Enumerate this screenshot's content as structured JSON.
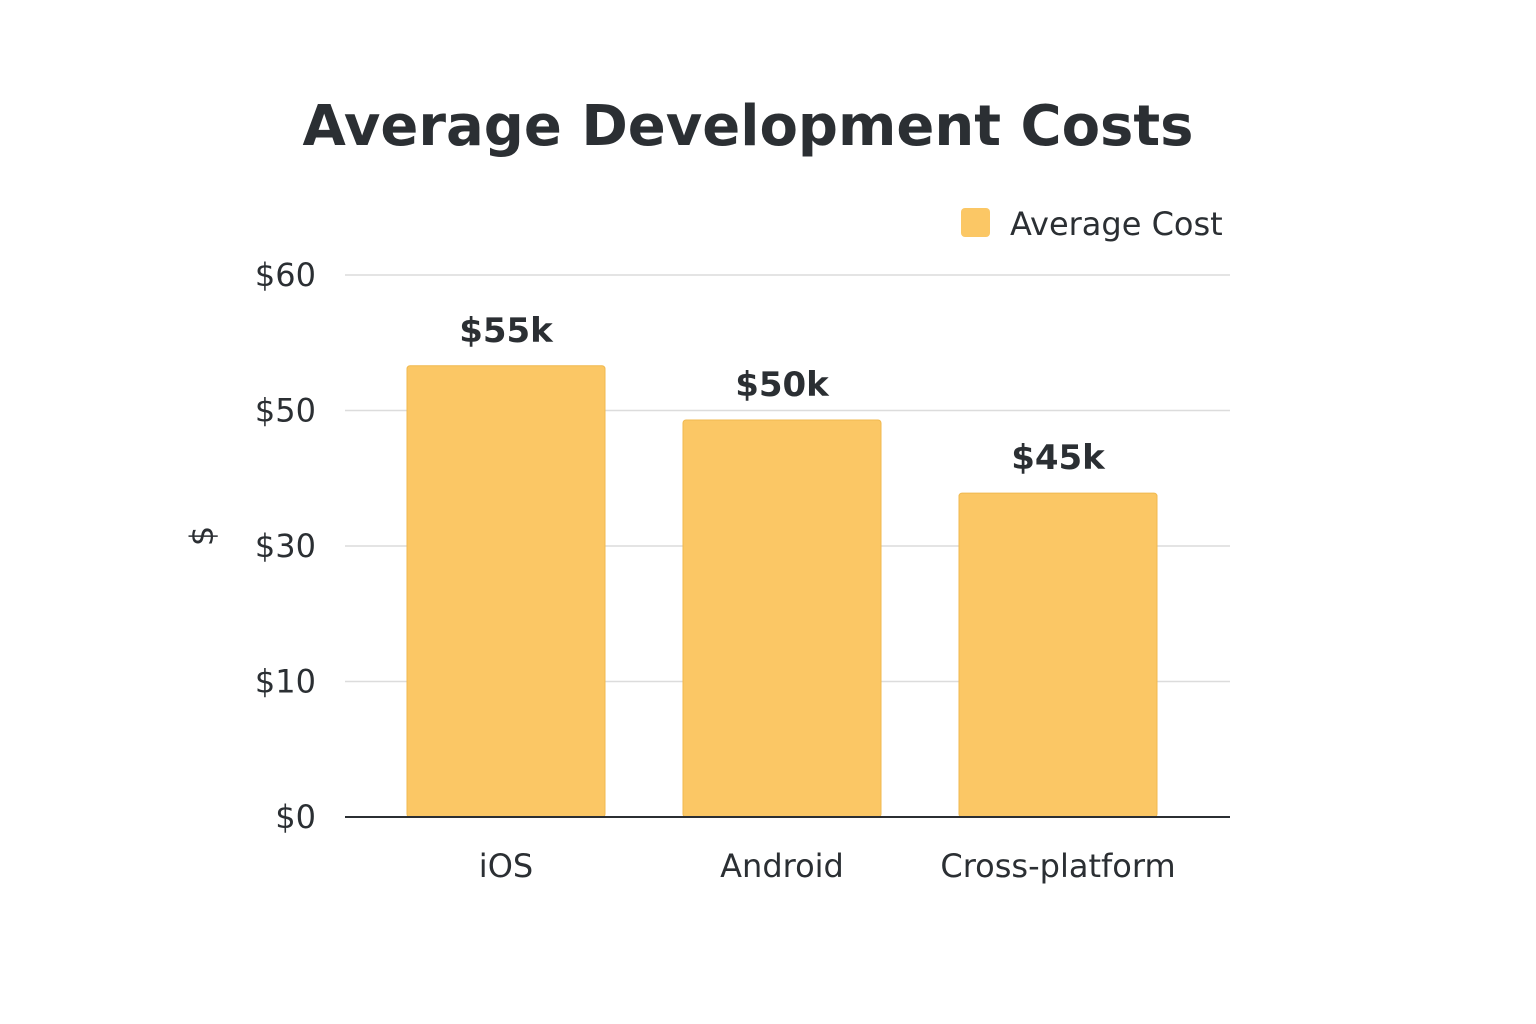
{
  "chart_data": {
    "type": "bar",
    "title": "Average Development Costs",
    "ylabel": "$",
    "xlabel": "",
    "categories": [
      "iOS",
      "Android",
      "Cross-platform"
    ],
    "series": [
      {
        "name": "Average Cost",
        "values": [
          55,
          50,
          45
        ],
        "data_labels": [
          "$55k",
          "$50k",
          "$45k"
        ],
        "color": "#fbc765"
      }
    ],
    "y_ticks": [
      {
        "label": "$0",
        "pos": 0
      },
      {
        "label": "$10",
        "pos": 1
      },
      {
        "label": "$30",
        "pos": 2
      },
      {
        "label": "$50",
        "pos": 3
      },
      {
        "label": "$60",
        "pos": 4
      }
    ],
    "bar_tick_positions": [
      3.33,
      2.93,
      2.39
    ],
    "grid": true,
    "legend": "top-right"
  }
}
